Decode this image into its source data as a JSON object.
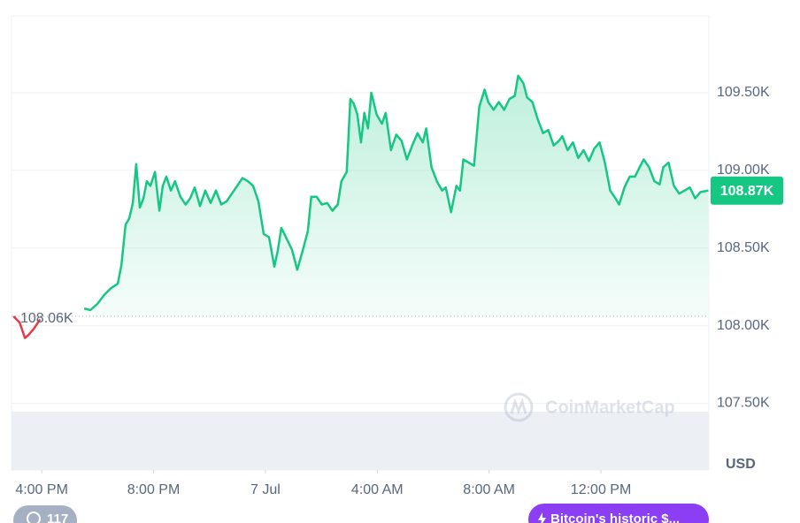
{
  "chart_data": {
    "type": "line",
    "ylim": [
      107070,
      109995
    ],
    "yticks": [
      {
        "value": 107500,
        "label": "107.50K"
      },
      {
        "value": 108000,
        "label": "108.00K"
      },
      {
        "value": 108500,
        "label": "108.50K"
      },
      {
        "value": 109000,
        "label": "109.00K"
      },
      {
        "value": 109500,
        "label": "109.50K"
      }
    ],
    "xlim": [
      -1.08,
      23.86
    ],
    "xticks": [
      {
        "value": 0,
        "label": "4:00 PM"
      },
      {
        "value": 4,
        "label": "8:00 PM"
      },
      {
        "value": 8,
        "label": "7 Jul"
      },
      {
        "value": 12,
        "label": "4:00 AM"
      },
      {
        "value": 16,
        "label": "8:00 AM"
      },
      {
        "value": 20,
        "label": "12:00 PM"
      }
    ],
    "y_unit": "USD",
    "grid": true,
    "reference": {
      "value": 108060,
      "label": "108.06K"
    },
    "current": {
      "value": 108870,
      "label": "108.87K",
      "color": "#16c784"
    },
    "watermark": "CoinMarketCap",
    "series": [
      {
        "color": "#ea3943",
        "x": [
          -1.01,
          -0.79,
          -0.6,
          -0.47,
          -0.28,
          -0.06
        ],
        "values": [
          108060,
          108020,
          107920,
          107940,
          107980,
          108040
        ]
      },
      {
        "color": "#16c784",
        "x": [
          1.52,
          1.74,
          1.99,
          2.25,
          2.47,
          2.72,
          2.85,
          3.0,
          3.13,
          3.26,
          3.38,
          3.51,
          3.64,
          3.76,
          3.89,
          4.05,
          4.21,
          4.33,
          4.46,
          4.62,
          4.77,
          4.96,
          5.15,
          5.31,
          5.47,
          5.66,
          5.85,
          6.04,
          6.23,
          6.42,
          6.61,
          6.8,
          6.99,
          7.18,
          7.37,
          7.56,
          7.75,
          7.94,
          8.13,
          8.32,
          8.44,
          8.57,
          8.76,
          8.95,
          9.14,
          9.33,
          9.52,
          9.64,
          9.83,
          10.02,
          10.21,
          10.4,
          10.59,
          10.72,
          10.91,
          11.04,
          11.16,
          11.29,
          11.42,
          11.54,
          11.67,
          11.79,
          11.98,
          12.17,
          12.3,
          12.49,
          12.68,
          12.87,
          13.06,
          13.25,
          13.44,
          13.63,
          13.75,
          13.94,
          14.13,
          14.32,
          14.45,
          14.64,
          14.83,
          14.96,
          15.08,
          15.27,
          15.46,
          15.65,
          15.84,
          15.97,
          16.16,
          16.35,
          16.54,
          16.73,
          16.92,
          17.04,
          17.23,
          17.36,
          17.55,
          17.74,
          17.93,
          18.12,
          18.31,
          18.5,
          18.62,
          18.81,
          19.0,
          19.19,
          19.38,
          19.57,
          19.76,
          19.95,
          20.14,
          20.33,
          20.52,
          20.65,
          20.84,
          21.03,
          21.22,
          21.41,
          21.53,
          21.72,
          21.91,
          22.1,
          22.23,
          22.42,
          22.61,
          22.8,
          22.99,
          23.18,
          23.37,
          23.56,
          23.84
        ],
        "values": [
          108110,
          108100,
          108140,
          108200,
          108240,
          108270,
          108390,
          108650,
          108690,
          108790,
          109040,
          108760,
          108820,
          108930,
          108900,
          108990,
          108740,
          108900,
          108960,
          108870,
          108930,
          108830,
          108780,
          108820,
          108890,
          108770,
          108870,
          108790,
          108870,
          108780,
          108800,
          108850,
          108900,
          108950,
          108930,
          108900,
          108800,
          108590,
          108570,
          108380,
          108480,
          108630,
          108560,
          108490,
          108360,
          108480,
          108610,
          108830,
          108830,
          108780,
          108790,
          108740,
          108780,
          108930,
          108990,
          109460,
          109430,
          109360,
          109180,
          109370,
          109270,
          109500,
          109360,
          109300,
          109370,
          109130,
          109230,
          109190,
          109070,
          109160,
          109240,
          109180,
          109270,
          109020,
          108930,
          108870,
          108890,
          108730,
          108900,
          108870,
          109070,
          109050,
          109030,
          109410,
          109520,
          109440,
          109390,
          109440,
          109390,
          109460,
          109480,
          109610,
          109560,
          109470,
          109440,
          109330,
          109240,
          109260,
          109160,
          109190,
          109220,
          109130,
          109180,
          109080,
          109130,
          109060,
          109140,
          109180,
          109050,
          108870,
          108820,
          108780,
          108890,
          108960,
          108960,
          109030,
          109070,
          109020,
          108930,
          108910,
          109020,
          109050,
          108900,
          108850,
          108870,
          108890,
          108820,
          108860,
          108870
        ]
      }
    ]
  },
  "footer": {
    "alerts": 117,
    "news": "Bitcoin's historic $..."
  }
}
